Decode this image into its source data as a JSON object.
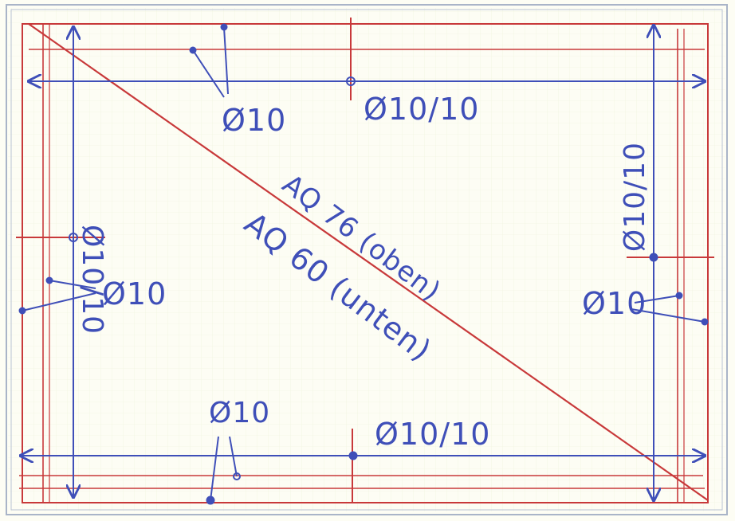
{
  "drawing": {
    "colors": {
      "paper": "#fdfdf4",
      "sheet_border": "#a9b4c8",
      "grid": "#eaeed2",
      "rebar_blue": "#3f4fb8",
      "slab_red": "#c8393a"
    },
    "labels": {
      "top_bar": "Ø10",
      "top_mesh": "Ø10/10",
      "left_mesh": "Ø10/10",
      "left_bar": "Ø10",
      "right_mesh": "Ø10/10",
      "right_bar": "Ø10",
      "bottom_bar": "Ø10",
      "bottom_mesh": "Ø10/10",
      "mesh_top": "AQ 76 (oben)",
      "mesh_bottom": "AQ 60 (unten)"
    }
  }
}
